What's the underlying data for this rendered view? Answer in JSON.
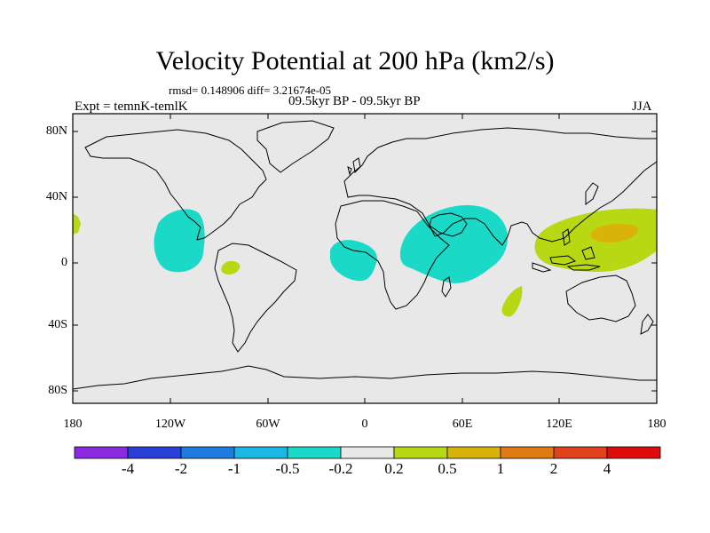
{
  "figure": {
    "title": "Velocity Potential at 200 hPa (km2/s)",
    "stats_line": "rmsd= 0.148906 diff= 3.21674e-05",
    "left_label": "Expt = temnK-temlK",
    "center_label": "09.5kyr BP - 09.5kyr BP",
    "right_label": "JJA"
  },
  "axes": {
    "lat_ticks": [
      "80N",
      "40N",
      "0",
      "40S",
      "80S"
    ],
    "lon_ticks": [
      "180",
      "120W",
      "60W",
      "0",
      "60E",
      "120E",
      "180"
    ]
  },
  "colorbar": {
    "colors": [
      "#8a2be2",
      "#2a3ed8",
      "#1e7be0",
      "#1ab8e2",
      "#1ad9c6",
      "#e8e8e8",
      "#b9d814",
      "#d8b40a",
      "#e07a12",
      "#e0421c",
      "#e00c0c"
    ],
    "labels": [
      "-4",
      "-2",
      "-1",
      "-0.5",
      "-0.2",
      "0.2",
      "0.5",
      "1",
      "2",
      "4"
    ]
  },
  "map": {
    "background": "#e8e8e8",
    "neg_fill": "#1ad9c6",
    "pos_fill": "#b9d814",
    "strong_fill": "#d8b40a"
  }
}
